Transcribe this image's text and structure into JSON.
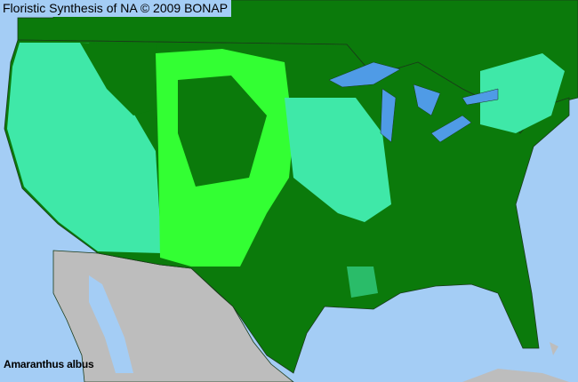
{
  "header": {
    "title": "Floristic Synthesis of NA © 2009 BONAP"
  },
  "map": {
    "species": "Amaranthus albus",
    "colors": {
      "water": "#a4cdf5",
      "canada_and_dark_counties": "#0b7a0b",
      "present_native_teal": "#3fe8a8",
      "bright_green": "#33ff33",
      "mexico_gray": "#bdbdbd",
      "lakes": "#4f9be6"
    }
  }
}
